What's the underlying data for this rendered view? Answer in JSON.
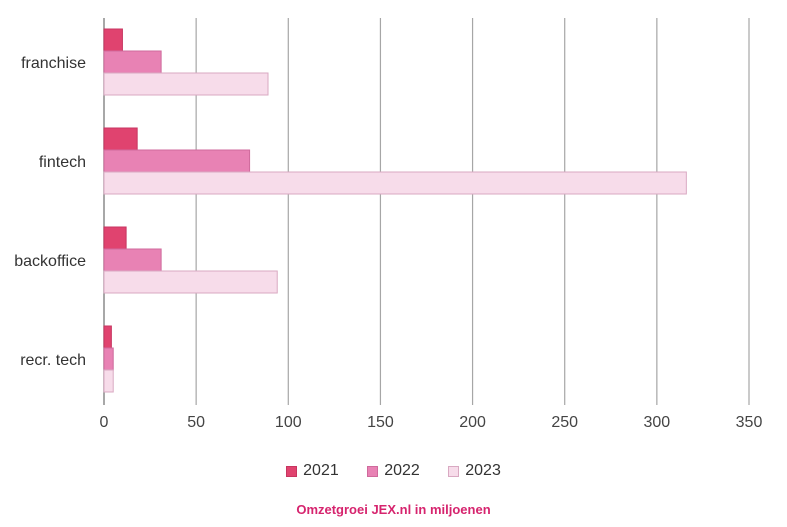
{
  "chart_data": {
    "type": "bar",
    "orientation": "horizontal",
    "categories": [
      "franchise",
      "fintech",
      "backoffice",
      "recr. tech"
    ],
    "series": [
      {
        "name": "2021",
        "values": [
          10,
          18,
          12,
          4
        ],
        "color": "#e0436f",
        "stroke": "#c73560"
      },
      {
        "name": "2022",
        "values": [
          31,
          79,
          31,
          5
        ],
        "color": "#e882b4",
        "stroke": "#cf6a9c"
      },
      {
        "name": "2023",
        "values": [
          89,
          316,
          94,
          5
        ],
        "color": "#f7dcea",
        "stroke": "#d9a9c2"
      }
    ],
    "xlim": [
      0,
      350
    ],
    "xticks": [
      0,
      50,
      100,
      150,
      200,
      250,
      300,
      350
    ],
    "grid": true,
    "legend_position": "bottom",
    "caption": "Omzetgroei JEX.nl in miljoenen"
  }
}
